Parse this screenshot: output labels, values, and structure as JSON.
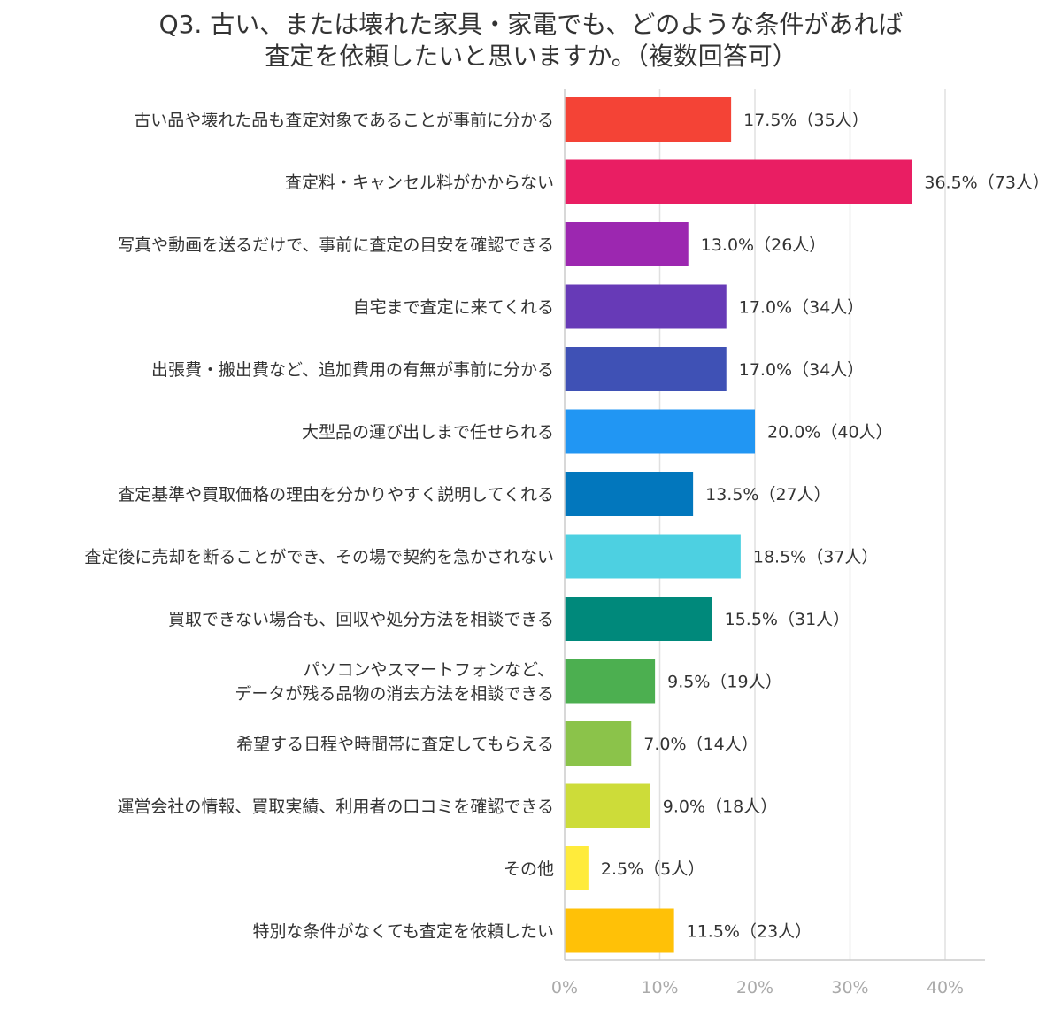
{
  "chart_data": {
    "type": "bar",
    "orientation": "horizontal",
    "title_lines": [
      "Q3. 古い、または壊れた家具・家電でも、どのような条件があれば",
      "査定を依頼したいと思いますか。（複数回答可）"
    ],
    "categories": [
      [
        "古い品や壊れた品も査定対象であることが事前に分かる"
      ],
      [
        "査定料・キャンセル料がかからない"
      ],
      [
        "写真や動画を送るだけで、事前に査定の目安を確認できる"
      ],
      [
        "自宅まで査定に来てくれる"
      ],
      [
        "出張費・搬出費など、追加費用の有無が事前に分かる"
      ],
      [
        "大型品の運び出しまで任せられる"
      ],
      [
        "査定基準や買取価格の理由を分かりやすく説明してくれる"
      ],
      [
        "査定後に売却を断ることができ、その場で契約を急かされない"
      ],
      [
        "買取できない場合も、回収や処分方法を相談できる"
      ],
      [
        "パソコンやスマートフォンなど、",
        "データが残る品物の消去方法を相談できる"
      ],
      [
        "希望する日程や時間帯に査定してもらえる"
      ],
      [
        "運営会社の情報、買取実績、利用者の口コミを確認できる"
      ],
      [
        "その他"
      ],
      [
        "特別な条件がなくても査定を依頼したい"
      ]
    ],
    "values": [
      17.5,
      36.5,
      13.0,
      17.0,
      17.0,
      20.0,
      13.5,
      18.5,
      15.5,
      9.5,
      7.0,
      9.0,
      2.5,
      11.5
    ],
    "value_labels": [
      "17.5%（35人）",
      "36.5%（73人）",
      "13.0%（26人）",
      "17.0%（34人）",
      "17.0%（34人）",
      "20.0%（40人）",
      "13.5%（27人）",
      "18.5%（37人）",
      "15.5%（31人）",
      "9.5%（19人）",
      "7.0%（14人）",
      "9.0%（18人）",
      "2.5%（5人）",
      "11.5%（23人）"
    ],
    "colors": [
      "#f44336",
      "#e91e63",
      "#9c27b0",
      "#673ab7",
      "#3f51b5",
      "#2196f3",
      "#0277bd",
      "#4dd0e1",
      "#00897b",
      "#4caf50",
      "#8bc34a",
      "#cddc39",
      "#ffeb3b",
      "#ffc107"
    ],
    "xlim": [
      0,
      40
    ],
    "x_ticks": [
      "0%",
      "10%",
      "20%",
      "30%",
      "40%"
    ],
    "x_tick_values": [
      0,
      10,
      20,
      30,
      40
    ],
    "grid": true,
    "grid_color": "#e0e0e0",
    "axis_color": "#cccccc"
  }
}
